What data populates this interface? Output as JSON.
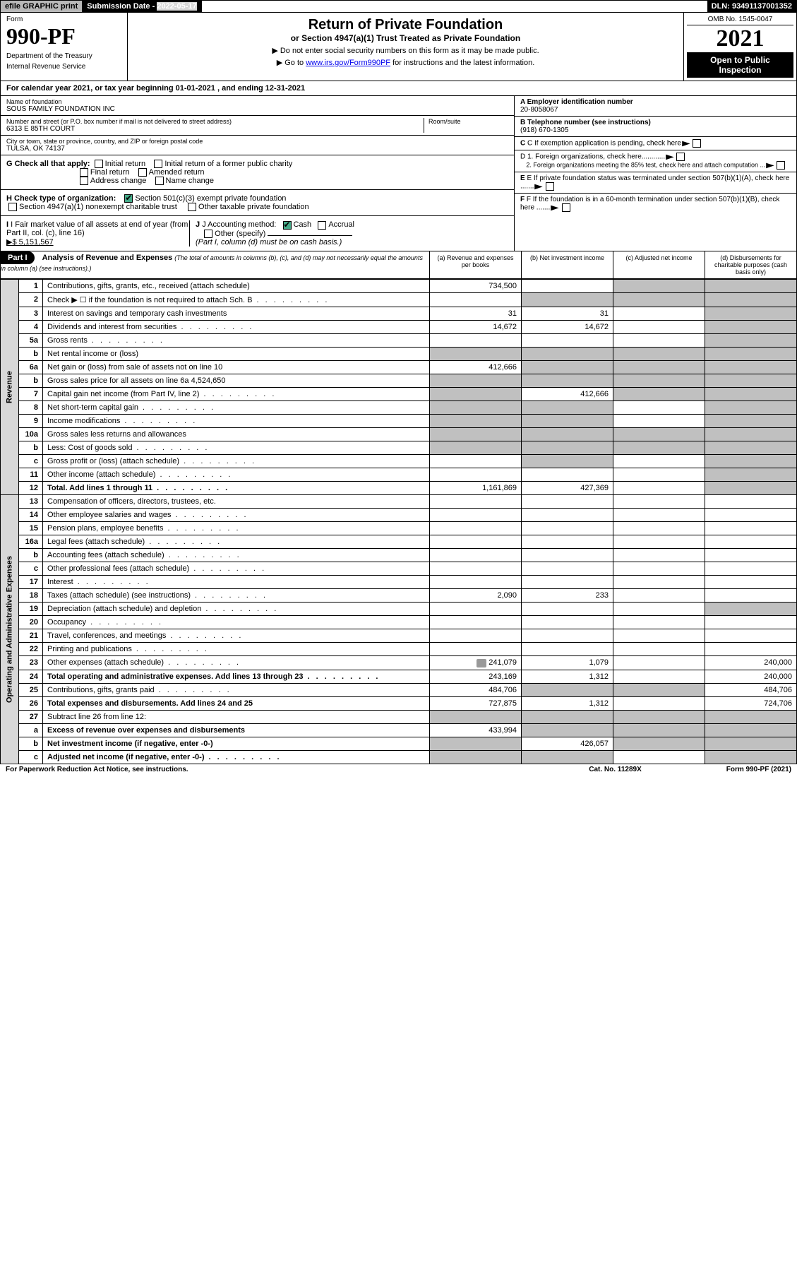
{
  "topbar": {
    "efile": "efile GRAPHIC print",
    "subdate_label": "Submission Date - ",
    "subdate": "2022-05-17",
    "dln": "DLN: 93491137001352"
  },
  "header": {
    "form_label": "Form",
    "form_no": "990-PF",
    "dept1": "Department of the Treasury",
    "dept2": "Internal Revenue Service",
    "title": "Return of Private Foundation",
    "subtitle": "or Section 4947(a)(1) Trust Treated as Private Foundation",
    "instr1": "▶ Do not enter social security numbers on this form as it may be made public.",
    "instr2_pre": "▶ Go to ",
    "instr2_link": "www.irs.gov/Form990PF",
    "instr2_post": " for instructions and the latest information.",
    "omb": "OMB No. 1545-0047",
    "year": "2021",
    "open": "Open to Public Inspection"
  },
  "cal_year": "For calendar year 2021, or tax year beginning 01-01-2021             , and ending 12-31-2021",
  "info": {
    "name_label": "Name of foundation",
    "name": "SOUS FAMILY FOUNDATION INC",
    "addr_label": "Number and street (or P.O. box number if mail is not delivered to street address)",
    "addr": "6313 E 85TH COURT",
    "room_label": "Room/suite",
    "city_label": "City or town, state or province, country, and ZIP or foreign postal code",
    "city": "TULSA, OK  74137",
    "a_label": "A Employer identification number",
    "a_val": "20-8058067",
    "b_label": "B Telephone number (see instructions)",
    "b_val": "(918) 670-1305",
    "c_label": "C If exemption application is pending, check here",
    "g_label": "G Check all that apply:",
    "g_opts": [
      "Initial return",
      "Initial return of a former public charity",
      "Final return",
      "Amended return",
      "Address change",
      "Name change"
    ],
    "d1": "D 1. Foreign organizations, check here............",
    "d2": "2. Foreign organizations meeting the 85% test, check here and attach computation ...",
    "h_label": "H Check type of organization:",
    "h_opts": [
      "Section 501(c)(3) exempt private foundation",
      "Section 4947(a)(1) nonexempt charitable trust",
      "Other taxable private foundation"
    ],
    "e_label": "E If private foundation status was terminated under section 507(b)(1)(A), check here .......",
    "i_label": "I Fair market value of all assets at end of year (from Part II, col. (c), line 16)",
    "i_val": "▶$  5,151,567",
    "j_label": "J Accounting method:",
    "j_cash": "Cash",
    "j_accrual": "Accrual",
    "j_other": "Other (specify)",
    "j_note": "(Part I, column (d) must be on cash basis.)",
    "f_label": "F If the foundation is in a 60-month termination under section 507(b)(1)(B), check here ......."
  },
  "part1": {
    "label": "Part I",
    "title": "Analysis of Revenue and Expenses",
    "note": "(The total of amounts in columns (b), (c), and (d) may not necessarily equal the amounts in column (a) (see instructions).)",
    "col_a": "(a)  Revenue and expenses per books",
    "col_b": "(b)  Net investment income",
    "col_c": "(c)  Adjusted net income",
    "col_d": "(d)  Disbursements for charitable purposes (cash basis only)"
  },
  "side": {
    "revenue": "Revenue",
    "expenses": "Operating and Administrative Expenses"
  },
  "rows": [
    {
      "n": "1",
      "d": "Contributions, gifts, grants, etc., received (attach schedule)",
      "a": "734,500",
      "b": "",
      "c": "s",
      "dd": "s"
    },
    {
      "n": "2",
      "d": "Check ▶ ☐ if the foundation is not required to attach Sch. B",
      "a": "",
      "b": "s",
      "c": "s",
      "dd": "s",
      "dots": 1
    },
    {
      "n": "3",
      "d": "Interest on savings and temporary cash investments",
      "a": "31",
      "b": "31",
      "c": "",
      "dd": "s"
    },
    {
      "n": "4",
      "d": "Dividends and interest from securities",
      "a": "14,672",
      "b": "14,672",
      "c": "",
      "dd": "s",
      "dots": 1
    },
    {
      "n": "5a",
      "d": "Gross rents",
      "a": "",
      "b": "",
      "c": "",
      "dd": "s",
      "dots": 1
    },
    {
      "n": "b",
      "d": "Net rental income or (loss)",
      "a": "s",
      "b": "s",
      "c": "s",
      "dd": "s"
    },
    {
      "n": "6a",
      "d": "Net gain or (loss) from sale of assets not on line 10",
      "a": "412,666",
      "b": "s",
      "c": "s",
      "dd": "s"
    },
    {
      "n": "b",
      "d": "Gross sales price for all assets on line 6a           4,524,650",
      "a": "s",
      "b": "s",
      "c": "s",
      "dd": "s"
    },
    {
      "n": "7",
      "d": "Capital gain net income (from Part IV, line 2)",
      "a": "s",
      "b": "412,666",
      "c": "s",
      "dd": "s",
      "dots": 1
    },
    {
      "n": "8",
      "d": "Net short-term capital gain",
      "a": "s",
      "b": "s",
      "c": "",
      "dd": "s",
      "dots": 1
    },
    {
      "n": "9",
      "d": "Income modifications",
      "a": "s",
      "b": "s",
      "c": "",
      "dd": "s",
      "dots": 1
    },
    {
      "n": "10a",
      "d": "Gross sales less returns and allowances",
      "a": "s",
      "b": "s",
      "c": "s",
      "dd": "s"
    },
    {
      "n": "b",
      "d": "Less: Cost of goods sold",
      "a": "s",
      "b": "s",
      "c": "s",
      "dd": "s",
      "dots": 1
    },
    {
      "n": "c",
      "d": "Gross profit or (loss) (attach schedule)",
      "a": "",
      "b": "s",
      "c": "",
      "dd": "s",
      "dots": 1
    },
    {
      "n": "11",
      "d": "Other income (attach schedule)",
      "a": "",
      "b": "",
      "c": "",
      "dd": "s",
      "dots": 1
    },
    {
      "n": "12",
      "d": "Total. Add lines 1 through 11",
      "a": "1,161,869",
      "b": "427,369",
      "c": "",
      "dd": "s",
      "bold": 1,
      "dots": 1
    },
    {
      "n": "13",
      "d": "Compensation of officers, directors, trustees, etc.",
      "a": "",
      "b": "",
      "c": "",
      "dd": ""
    },
    {
      "n": "14",
      "d": "Other employee salaries and wages",
      "a": "",
      "b": "",
      "c": "",
      "dd": "",
      "dots": 1
    },
    {
      "n": "15",
      "d": "Pension plans, employee benefits",
      "a": "",
      "b": "",
      "c": "",
      "dd": "",
      "dots": 1
    },
    {
      "n": "16a",
      "d": "Legal fees (attach schedule)",
      "a": "",
      "b": "",
      "c": "",
      "dd": "",
      "dots": 1
    },
    {
      "n": "b",
      "d": "Accounting fees (attach schedule)",
      "a": "",
      "b": "",
      "c": "",
      "dd": "",
      "dots": 1
    },
    {
      "n": "c",
      "d": "Other professional fees (attach schedule)",
      "a": "",
      "b": "",
      "c": "",
      "dd": "",
      "dots": 1
    },
    {
      "n": "17",
      "d": "Interest",
      "a": "",
      "b": "",
      "c": "",
      "dd": "",
      "dots": 1
    },
    {
      "n": "18",
      "d": "Taxes (attach schedule) (see instructions)",
      "a": "2,090",
      "b": "233",
      "c": "",
      "dd": "",
      "dots": 1
    },
    {
      "n": "19",
      "d": "Depreciation (attach schedule) and depletion",
      "a": "",
      "b": "",
      "c": "",
      "dd": "s",
      "dots": 1
    },
    {
      "n": "20",
      "d": "Occupancy",
      "a": "",
      "b": "",
      "c": "",
      "dd": "",
      "dots": 1
    },
    {
      "n": "21",
      "d": "Travel, conferences, and meetings",
      "a": "",
      "b": "",
      "c": "",
      "dd": "",
      "dots": 1
    },
    {
      "n": "22",
      "d": "Printing and publications",
      "a": "",
      "b": "",
      "c": "",
      "dd": "",
      "dots": 1
    },
    {
      "n": "23",
      "d": "Other expenses (attach schedule)",
      "a": "241,079",
      "b": "1,079",
      "c": "",
      "dd": "240,000",
      "dots": 1,
      "att": 1
    },
    {
      "n": "24",
      "d": "Total operating and administrative expenses. Add lines 13 through 23",
      "a": "243,169",
      "b": "1,312",
      "c": "",
      "dd": "240,000",
      "bold": 1,
      "dots": 1
    },
    {
      "n": "25",
      "d": "Contributions, gifts, grants paid",
      "a": "484,706",
      "b": "s",
      "c": "s",
      "dd": "484,706",
      "dots": 1
    },
    {
      "n": "26",
      "d": "Total expenses and disbursements. Add lines 24 and 25",
      "a": "727,875",
      "b": "1,312",
      "c": "",
      "dd": "724,706",
      "bold": 1
    },
    {
      "n": "27",
      "d": "Subtract line 26 from line 12:",
      "a": "s",
      "b": "s",
      "c": "s",
      "dd": "s"
    },
    {
      "n": "a",
      "d": "Excess of revenue over expenses and disbursements",
      "a": "433,994",
      "b": "s",
      "c": "s",
      "dd": "s",
      "bold": 1
    },
    {
      "n": "b",
      "d": "Net investment income (if negative, enter -0-)",
      "a": "s",
      "b": "426,057",
      "c": "s",
      "dd": "s",
      "bold": 1
    },
    {
      "n": "c",
      "d": "Adjusted net income (if negative, enter -0-)",
      "a": "s",
      "b": "s",
      "c": "",
      "dd": "s",
      "bold": 1,
      "dots": 1
    }
  ],
  "footer": {
    "left": "For Paperwork Reduction Act Notice, see instructions.",
    "mid": "Cat. No. 11289X",
    "right": "Form 990-PF (2021)"
  }
}
